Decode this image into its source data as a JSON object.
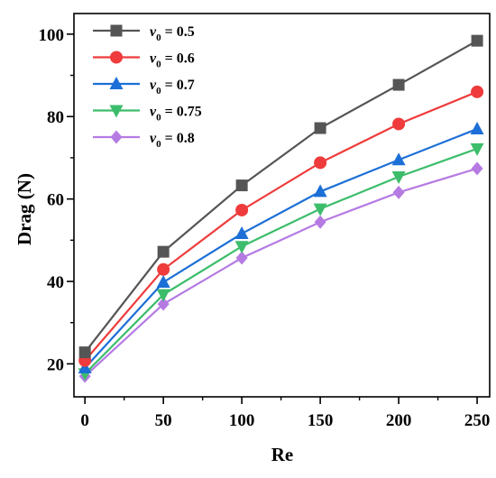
{
  "chart_data": {
    "type": "line",
    "xlabel": "Re",
    "ylabel": "Drag (N)",
    "x": [
      0,
      50,
      100,
      150,
      200,
      250
    ],
    "xlim": [
      -7,
      258
    ],
    "ylim": [
      12,
      105
    ],
    "xticks": [
      0,
      50,
      100,
      150,
      200,
      250
    ],
    "yticks": [
      20,
      40,
      60,
      80,
      100
    ],
    "x_tick_labels": [
      "0",
      "50",
      "100",
      "150",
      "200",
      "250"
    ],
    "y_tick_labels": [
      "20",
      "40",
      "60",
      "80",
      "100"
    ],
    "grid": false,
    "legend_position": "top-left",
    "series": [
      {
        "var": "v",
        "sub": "0",
        "value_text": " = 0.5",
        "color": "#555555",
        "marker": "square",
        "values": [
          22.8,
          47.2,
          63.3,
          77.2,
          87.7,
          98.4
        ]
      },
      {
        "var": "v",
        "sub": "0",
        "value_text": " = 0.6",
        "color": "#ef3b3b",
        "marker": "circle",
        "values": [
          20.8,
          42.9,
          57.3,
          68.8,
          78.2,
          86.0
        ]
      },
      {
        "var": "v",
        "sub": "0",
        "value_text": " = 0.7",
        "color": "#1c6fd6",
        "marker": "triangle-up",
        "values": [
          19.0,
          39.8,
          51.6,
          61.8,
          69.5,
          77.0
        ]
      },
      {
        "var": "v",
        "sub": "0",
        "value_text": " = 0.75",
        "color": "#3cbd6b",
        "marker": "triangle-down",
        "values": [
          17.6,
          36.8,
          48.5,
          57.6,
          65.4,
          72.2
        ]
      },
      {
        "var": "v",
        "sub": "0",
        "value_text": " = 0.8",
        "color": "#b57be3",
        "marker": "diamond",
        "values": [
          17.0,
          34.5,
          45.7,
          54.4,
          61.6,
          67.4
        ]
      }
    ]
  }
}
